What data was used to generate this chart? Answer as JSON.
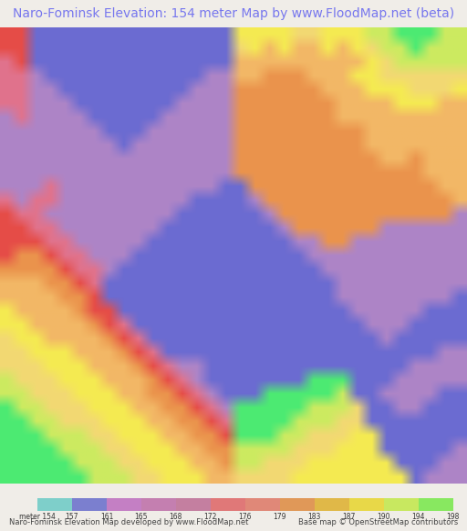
{
  "title": "Naro-Fominsk Elevation: 154 meter Map by www.FloodMap.net (beta)",
  "title_color": "#7777ee",
  "title_fontsize": 10.0,
  "background_color": "#f0ede8",
  "colorbar_labels": [
    "meter 154",
    "157",
    "161",
    "165",
    "168",
    "172",
    "176",
    "179",
    "183",
    "187",
    "190",
    "194",
    "198"
  ],
  "colorbar_colors": [
    "#7ecfca",
    "#7b7fcf",
    "#c47fc4",
    "#c47fb0",
    "#c47fa0",
    "#e07878",
    "#e08878",
    "#e09858",
    "#e0b848",
    "#e8d848",
    "#c8e860",
    "#88e860"
  ],
  "footer_left": "Naro-Fominsk Elevation Map developed by www.FloodMap.net",
  "footer_right": "Base map © OpenStreetMap contributors",
  "footer_fontsize": 6.0,
  "fig_width": 5.12,
  "fig_height": 5.82,
  "map_colors": {
    "blue": [
      0.42,
      0.42,
      0.82
    ],
    "purple": [
      0.68,
      0.52,
      0.78
    ],
    "pink_red": [
      0.88,
      0.45,
      0.55
    ],
    "red": [
      0.9,
      0.3,
      0.28
    ],
    "orange": [
      0.92,
      0.58,
      0.3
    ],
    "lt_orange": [
      0.95,
      0.72,
      0.4
    ],
    "yellow": [
      0.96,
      0.92,
      0.32
    ],
    "lt_yellow": [
      0.95,
      0.85,
      0.45
    ],
    "yellow_grn": [
      0.8,
      0.92,
      0.38
    ],
    "green": [
      0.3,
      0.92,
      0.45
    ],
    "teal": [
      0.3,
      0.82,
      0.78
    ],
    "dk_blue": [
      0.3,
      0.3,
      0.75
    ],
    "lt_purple": [
      0.75,
      0.6,
      0.85
    ],
    "salmon": [
      0.92,
      0.62,
      0.52
    ]
  }
}
